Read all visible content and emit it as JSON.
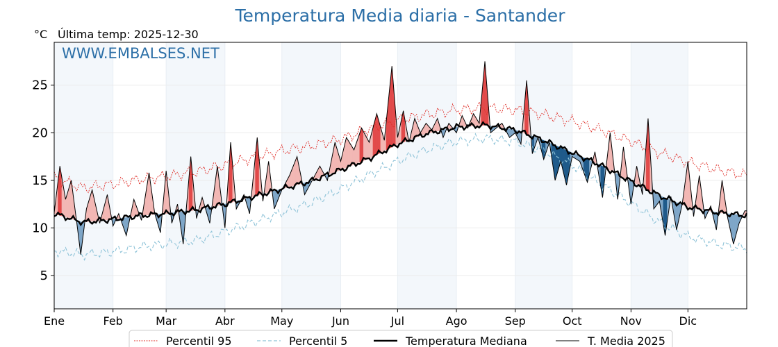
{
  "chart_data": {
    "type": "line",
    "title": "Temperatura Media diaria - Santander",
    "ylabel": "°C",
    "subtitle": "Última temp: 2025-12-30",
    "watermark": "WWW.EMBALSES.NET",
    "xlim": [
      0,
      365
    ],
    "ylim": [
      1.5,
      29.5
    ],
    "yticks": [
      5,
      10,
      15,
      20,
      25
    ],
    "months": [
      "Ene",
      "Feb",
      "Mar",
      "Abr",
      "May",
      "Jun",
      "Jul",
      "Ago",
      "Sep",
      "Oct",
      "Nov",
      "Dic"
    ],
    "month_days": [
      0,
      31,
      59,
      90,
      120,
      151,
      181,
      212,
      243,
      273,
      304,
      334
    ],
    "grid": true,
    "legend": {
      "position": "bottom-center",
      "p95": "Percentil 95",
      "p5": "Percentil 5",
      "median": "Temperatura Mediana",
      "current": "T. Media 2025"
    },
    "colors": {
      "title": "#2c6fa7",
      "p95": "#e0302a",
      "p5": "#8ec3d8",
      "median": "#000000",
      "current": "#000000",
      "above_fill": "#f2b7b4",
      "above_strong": "#e24a4a",
      "below_fill": "#7ea6c8",
      "below_strong": "#1f5a8a",
      "shade": "#f3f7fb"
    },
    "series": [
      {
        "name": "Percentil 95",
        "key": "p95",
        "style": "dotted",
        "x": [
          0,
          15,
          31,
          45,
          59,
          75,
          90,
          105,
          120,
          135,
          151,
          166,
          181,
          196,
          212,
          227,
          243,
          258,
          273,
          288,
          304,
          319,
          334,
          350,
          365
        ],
        "values": [
          15.3,
          14.2,
          14.6,
          15.1,
          15.4,
          15.9,
          16.6,
          17.4,
          18.1,
          18.6,
          19.3,
          20.4,
          21.3,
          21.9,
          22.4,
          22.6,
          22.4,
          21.9,
          21.2,
          20.3,
          19.1,
          17.9,
          16.9,
          16.1,
          15.5
        ]
      },
      {
        "name": "Percentil 5",
        "key": "p5",
        "style": "dashed",
        "x": [
          0,
          15,
          31,
          45,
          59,
          75,
          90,
          105,
          120,
          135,
          151,
          166,
          181,
          196,
          212,
          227,
          243,
          258,
          273,
          288,
          304,
          319,
          334,
          350,
          365
        ],
        "values": [
          7.6,
          7.2,
          7.5,
          8.0,
          8.3,
          8.7,
          9.6,
          10.6,
          11.6,
          12.6,
          14.1,
          15.6,
          17.0,
          18.2,
          19.1,
          19.4,
          19.1,
          18.1,
          16.6,
          14.6,
          12.6,
          10.6,
          9.1,
          8.3,
          7.8
        ]
      },
      {
        "name": "Temperatura Mediana",
        "key": "median",
        "style": "solid-thick",
        "x": [
          0,
          15,
          31,
          45,
          59,
          75,
          90,
          105,
          120,
          135,
          151,
          166,
          181,
          196,
          212,
          227,
          243,
          258,
          273,
          288,
          304,
          319,
          334,
          350,
          365
        ],
        "values": [
          11.5,
          10.6,
          10.9,
          11.3,
          11.5,
          11.9,
          12.5,
          13.3,
          14.1,
          14.9,
          16.1,
          17.3,
          18.8,
          19.9,
          20.6,
          20.8,
          20.3,
          19.2,
          17.9,
          16.6,
          14.9,
          13.4,
          12.2,
          11.6,
          11.3
        ]
      },
      {
        "name": "T. Media 2025",
        "key": "current",
        "style": "solid",
        "x": [
          0,
          3,
          6,
          9,
          12,
          14,
          17,
          20,
          24,
          28,
          31,
          34,
          38,
          42,
          46,
          50,
          53,
          56,
          59,
          62,
          65,
          68,
          72,
          75,
          78,
          82,
          86,
          90,
          93,
          96,
          100,
          103,
          107,
          110,
          113,
          116,
          120,
          124,
          128,
          132,
          136,
          140,
          144,
          148,
          151,
          154,
          158,
          162,
          166,
          170,
          174,
          178,
          181,
          184,
          187,
          190,
          193,
          196,
          199,
          202,
          205,
          208,
          212,
          215,
          218,
          221,
          224,
          227,
          230,
          233,
          236,
          240,
          243,
          246,
          249,
          252,
          255,
          258,
          261,
          264,
          267,
          270,
          273,
          277,
          281,
          285,
          289,
          293,
          297,
          300,
          304,
          307,
          310,
          313,
          316,
          319,
          322,
          325,
          328,
          331,
          334,
          337,
          340,
          343,
          346,
          349,
          352,
          355,
          358,
          361,
          364
        ],
        "values": [
          11.6,
          16.5,
          13.0,
          15.0,
          10.4,
          7.2,
          12.0,
          14.0,
          10.5,
          13.5,
          10.2,
          11.5,
          9.2,
          13.0,
          10.8,
          15.8,
          11.5,
          9.5,
          16.0,
          10.5,
          12.5,
          8.3,
          17.5,
          11.0,
          13.2,
          10.5,
          16.5,
          10.0,
          19.0,
          12.0,
          13.5,
          11.5,
          19.5,
          12.8,
          17.0,
          12.0,
          14.0,
          15.5,
          17.5,
          13.5,
          15.0,
          16.5,
          15.0,
          19.0,
          17.0,
          19.5,
          18.2,
          20.5,
          19.0,
          22.0,
          19.2,
          27.0,
          19.5,
          22.3,
          19.0,
          21.5,
          20.0,
          21.0,
          20.3,
          21.5,
          19.5,
          21.0,
          20.0,
          21.8,
          20.5,
          22.0,
          21.0,
          27.5,
          20.0,
          20.5,
          21.0,
          19.5,
          20.0,
          18.8,
          25.5,
          17.8,
          19.5,
          17.2,
          19.0,
          15.0,
          17.0,
          14.5,
          17.5,
          17.0,
          14.8,
          18.0,
          13.2,
          20.0,
          13.0,
          18.5,
          12.5,
          16.5,
          13.5,
          21.5,
          12.0,
          12.8,
          9.2,
          13.3,
          9.8,
          12.5,
          17.0,
          11.2,
          15.5,
          11.0,
          12.3,
          9.8,
          15.0,
          11.0,
          8.3,
          10.5,
          11.8
        ]
      }
    ]
  }
}
